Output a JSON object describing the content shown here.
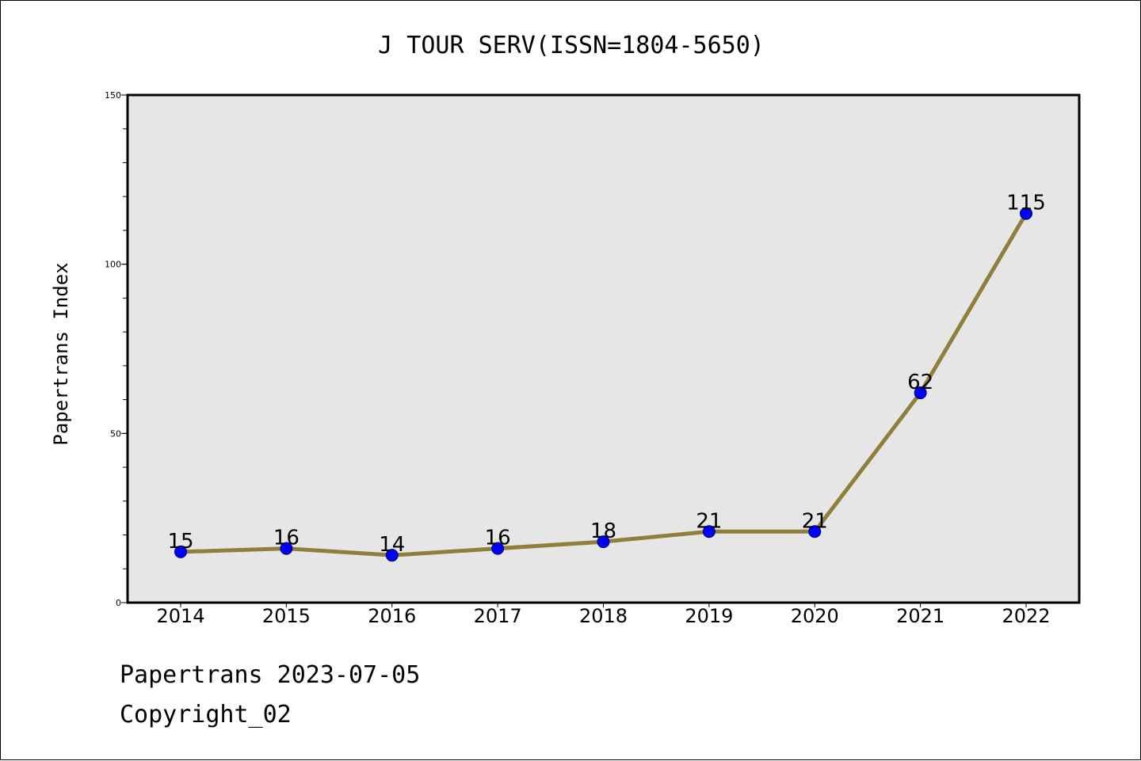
{
  "chart_data": {
    "type": "line",
    "title": "J TOUR SERV(ISSN=1804-5650)",
    "xlabel": "",
    "ylabel": "Papertrans Index",
    "categories": [
      "2014",
      "2015",
      "2016",
      "2017",
      "2018",
      "2019",
      "2020",
      "2021",
      "2022"
    ],
    "series": [
      {
        "values": [
          15,
          16,
          14,
          16,
          18,
          21,
          21,
          62,
          115
        ]
      }
    ],
    "data_labels": [
      "15",
      "16",
      "14",
      "16",
      "18",
      "21",
      "21",
      "62",
      "115"
    ],
    "ylim": [
      0,
      150
    ],
    "yticks": [
      0,
      50,
      100,
      150
    ],
    "yticks_minor_step": 10,
    "grid": false,
    "legend": "none",
    "colors": {
      "line": "#8f7f3a",
      "marker": "#0000ff",
      "marker_edge": "#000066",
      "plot_background": "#e6e6e6"
    }
  },
  "footer": {
    "date_line": "Papertrans 2023-07-05",
    "copyright_line": "Copyright_02"
  }
}
